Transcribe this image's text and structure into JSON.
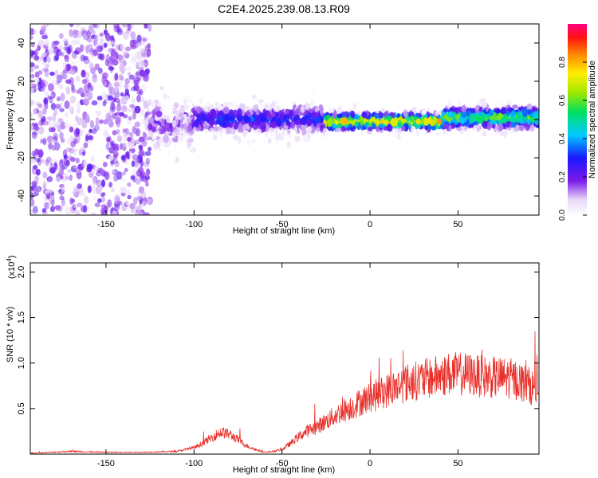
{
  "title": "C2E4.2025.239.08.13.R09",
  "chart_data": [
    {
      "type": "heatmap",
      "xlabel": "Height of straight line (km)",
      "ylabel": "Frequency (Hz)",
      "xlim": [
        -193,
        96
      ],
      "ylim": [
        -50,
        50
      ],
      "xticks": [
        -150,
        -100,
        -50,
        0,
        50
      ],
      "yticks": [
        -40,
        -20,
        0,
        20,
        40
      ],
      "colorbar": {
        "label": "Normalized spectral amplitude",
        "range": [
          0.0,
          1.0
        ],
        "ticks": [
          0.0,
          0.2,
          0.4,
          0.6,
          0.8
        ]
      },
      "ridge_segments": [
        {
          "x_range": [
            -193,
            -125
          ],
          "center_hz": 0,
          "spread_hz": 50,
          "level": 0.08
        },
        {
          "x_range": [
            -125,
            -100
          ],
          "center_hz": -2,
          "spread_hz": 8,
          "level": 0.15
        },
        {
          "x_range": [
            -100,
            -25
          ],
          "center_hz": 0,
          "spread_hz": 5,
          "level": 0.3
        },
        {
          "x_range": [
            -25,
            42
          ],
          "center_hz": -1,
          "spread_hz": 3,
          "level": 0.8
        },
        {
          "x_range": [
            42,
            96
          ],
          "center_hz": 1,
          "spread_hz": 4,
          "level": 0.6
        }
      ]
    },
    {
      "type": "line",
      "xlabel": "Height of straight line (km)",
      "ylabel": "SNR (10 * v/v)",
      "y_multiplier": "(x10",
      "y_multiplier_exp": "4",
      "y_multiplier_close": ")",
      "xlim": [
        -193,
        96
      ],
      "ylim": [
        0,
        2.1
      ],
      "xticks": [
        -150,
        -100,
        -50,
        0,
        50
      ],
      "yticks": [
        "0.5",
        "1.0",
        "1.5",
        "2.0"
      ],
      "color": "#e8302a",
      "x": [
        -193,
        -170,
        -150,
        -130,
        -110,
        -100,
        -95,
        -90,
        -85,
        -80,
        -75,
        -70,
        -65,
        -60,
        -55,
        -50,
        -45,
        -40,
        -35,
        -30,
        -25,
        -20,
        -15,
        -10,
        -5,
        0,
        5,
        10,
        15,
        20,
        25,
        30,
        35,
        40,
        45,
        50,
        55,
        60,
        65,
        70,
        75,
        80,
        85,
        90,
        96
      ],
      "y": [
        0.01,
        0.03,
        0.02,
        0.02,
        0.03,
        0.07,
        0.12,
        0.18,
        0.24,
        0.22,
        0.16,
        0.09,
        0.05,
        0.02,
        0.03,
        0.05,
        0.12,
        0.2,
        0.26,
        0.3,
        0.36,
        0.42,
        0.48,
        0.52,
        0.58,
        0.62,
        0.66,
        0.7,
        0.74,
        0.78,
        0.8,
        0.82,
        0.84,
        0.86,
        0.88,
        0.88,
        0.88,
        0.86,
        0.85,
        0.84,
        0.84,
        0.83,
        0.8,
        0.76,
        0.7
      ]
    }
  ]
}
